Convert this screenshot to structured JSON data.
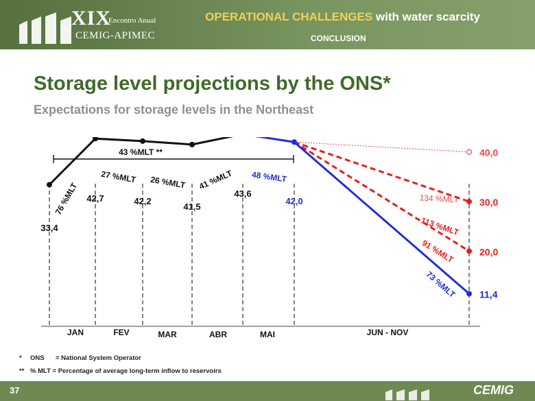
{
  "header": {
    "event_roman": "XIX",
    "event_subtitle": "Encontro Anual",
    "event_name": "CEMIG-APIMEC",
    "title_accent": "OPERATIONAL CHALLENGES",
    "title_rest": " with water scarcity",
    "section": "CONCLUSION"
  },
  "page": {
    "title": "Storage level projections by the ONS*",
    "subtitle": "Expectations for storage levels in the Northeast"
  },
  "chart_data": {
    "type": "line",
    "categories": [
      "JAN",
      "FEV",
      "MAR",
      "ABR",
      "MAI",
      "JUN - NOV"
    ],
    "bracket_label": "43 %MLT **",
    "observed": {
      "color": "#111111",
      "points": [
        {
          "label": "33,4",
          "value": 33.4
        },
        {
          "label": "42,7",
          "value": 42.7
        },
        {
          "label": "42,2",
          "value": 42.2
        },
        {
          "label": "41,5",
          "value": 41.5
        },
        {
          "label": "43,6",
          "value": 43.6
        }
      ],
      "segment_labels": [
        "76 %MLT",
        "27 %MLT",
        "26 %MLT",
        "41 %MLT"
      ]
    },
    "may": {
      "color": "#1f2ed6",
      "label": "42,0",
      "value": 42.0,
      "segment_label": "48 %MLT"
    },
    "scenarios": [
      {
        "name": "134 %MLT",
        "end_value": 40.0,
        "end_label": "40,0",
        "color": "#e34a4a",
        "label_color": "#e34a4a",
        "style": "dotted",
        "marker": "open"
      },
      {
        "name": "113 %MLT",
        "end_value": 30.0,
        "end_label": "30,0",
        "color": "#e81e1e",
        "label_color": "#e81e1e",
        "style": "dashed",
        "marker": "filled"
      },
      {
        "name": "91 %MLT",
        "end_value": 20.0,
        "end_label": "20,0",
        "color": "#e81e1e",
        "label_color": "#e81e1e",
        "style": "dashed",
        "marker": "filled"
      },
      {
        "name": "73 %MLT",
        "end_value": 11.4,
        "end_label": "11,4",
        "color": "#1f2ed6",
        "label_color": "#1f2ed6",
        "style": "solid",
        "marker": "filled"
      }
    ]
  },
  "footnotes": [
    {
      "mark": "*",
      "abbr": "ONS",
      "text": "= National System Operator"
    },
    {
      "mark": "**",
      "abbr": "% MLT",
      "text": "= Percentage of average long-term inflow to reservoirs"
    }
  ],
  "footer": {
    "page_number": "37",
    "brand": "CEMIG"
  },
  "colors": {
    "header_green": "#6e8a52",
    "title_green": "#3f6b2a",
    "accent_yellow": "#f0d25a"
  }
}
